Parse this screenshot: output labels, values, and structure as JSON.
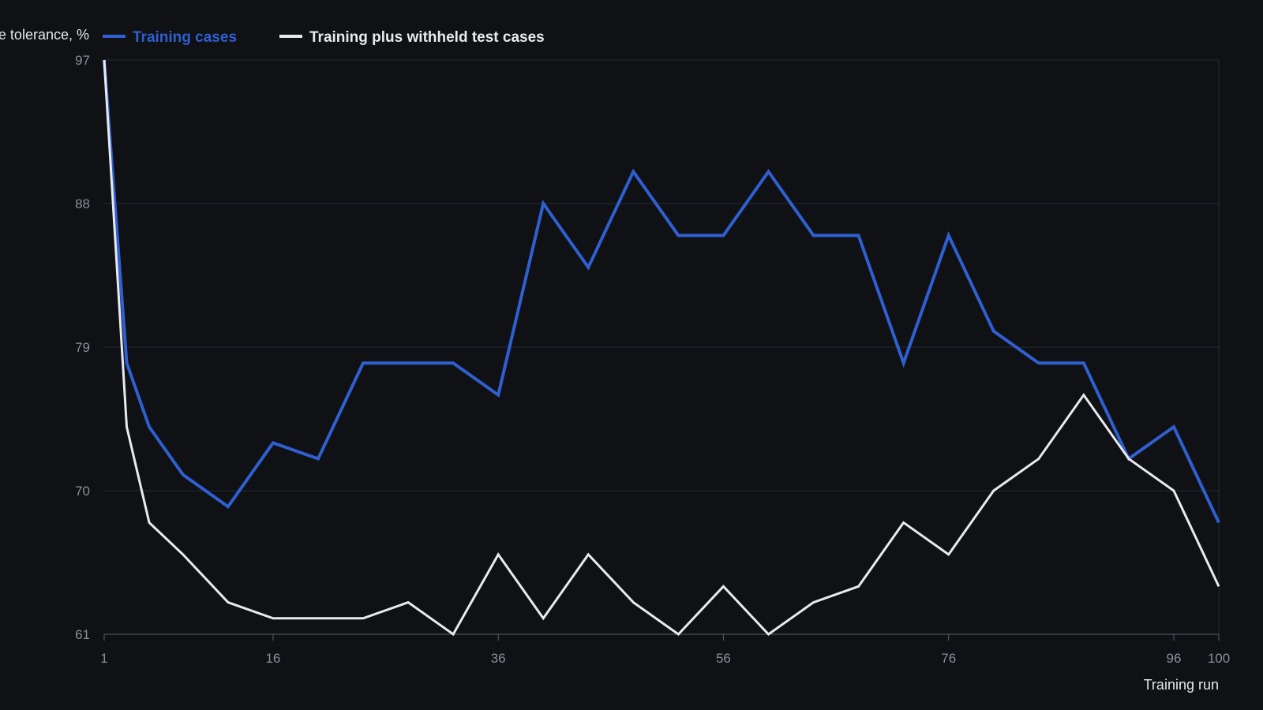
{
  "chart_data": {
    "type": "line",
    "ylabel": "e tolerance, %",
    "xlabel": "Training run",
    "x": [
      1,
      2,
      4,
      6,
      11,
      16,
      21,
      26,
      31,
      36,
      41,
      46,
      51,
      56,
      61,
      66,
      71,
      76,
      81,
      86,
      91,
      96,
      100
    ],
    "x_ticks": [
      1,
      16,
      36,
      56,
      76,
      96,
      100
    ],
    "y_ticks": [
      61,
      70,
      79,
      88,
      97
    ],
    "xlim": [
      1,
      100
    ],
    "ylim": [
      61,
      97
    ],
    "grid": "horizontal",
    "legend_position": "top-left",
    "series": [
      {
        "name": "Training cases",
        "color": "#2f5fd0",
        "values": [
          97,
          78,
          74,
          71,
          69,
          73,
          72,
          78,
          78,
          78,
          76,
          88,
          84,
          90,
          86,
          86,
          90,
          86,
          86,
          78,
          86,
          80,
          78,
          78,
          72,
          74,
          68
        ],
        "x": [
          1,
          3,
          5,
          8,
          12,
          16,
          20,
          24,
          28,
          32,
          36,
          40,
          44,
          48,
          52,
          56,
          60,
          64,
          68,
          72,
          76,
          80,
          84,
          88,
          92,
          96,
          100
        ]
      },
      {
        "name": "Training plus withheld test cases",
        "color": "#e8eaee",
        "values": [
          97,
          74,
          68,
          66,
          63,
          62,
          62,
          62,
          63,
          61,
          66,
          62,
          66,
          63,
          61,
          64,
          61,
          63,
          64,
          68,
          66,
          70,
          72,
          76,
          72,
          70,
          64
        ],
        "x": [
          1,
          3,
          5,
          8,
          12,
          16,
          20,
          24,
          28,
          32,
          36,
          40,
          44,
          48,
          52,
          56,
          60,
          64,
          68,
          72,
          76,
          80,
          84,
          88,
          92,
          96,
          100
        ]
      }
    ]
  }
}
